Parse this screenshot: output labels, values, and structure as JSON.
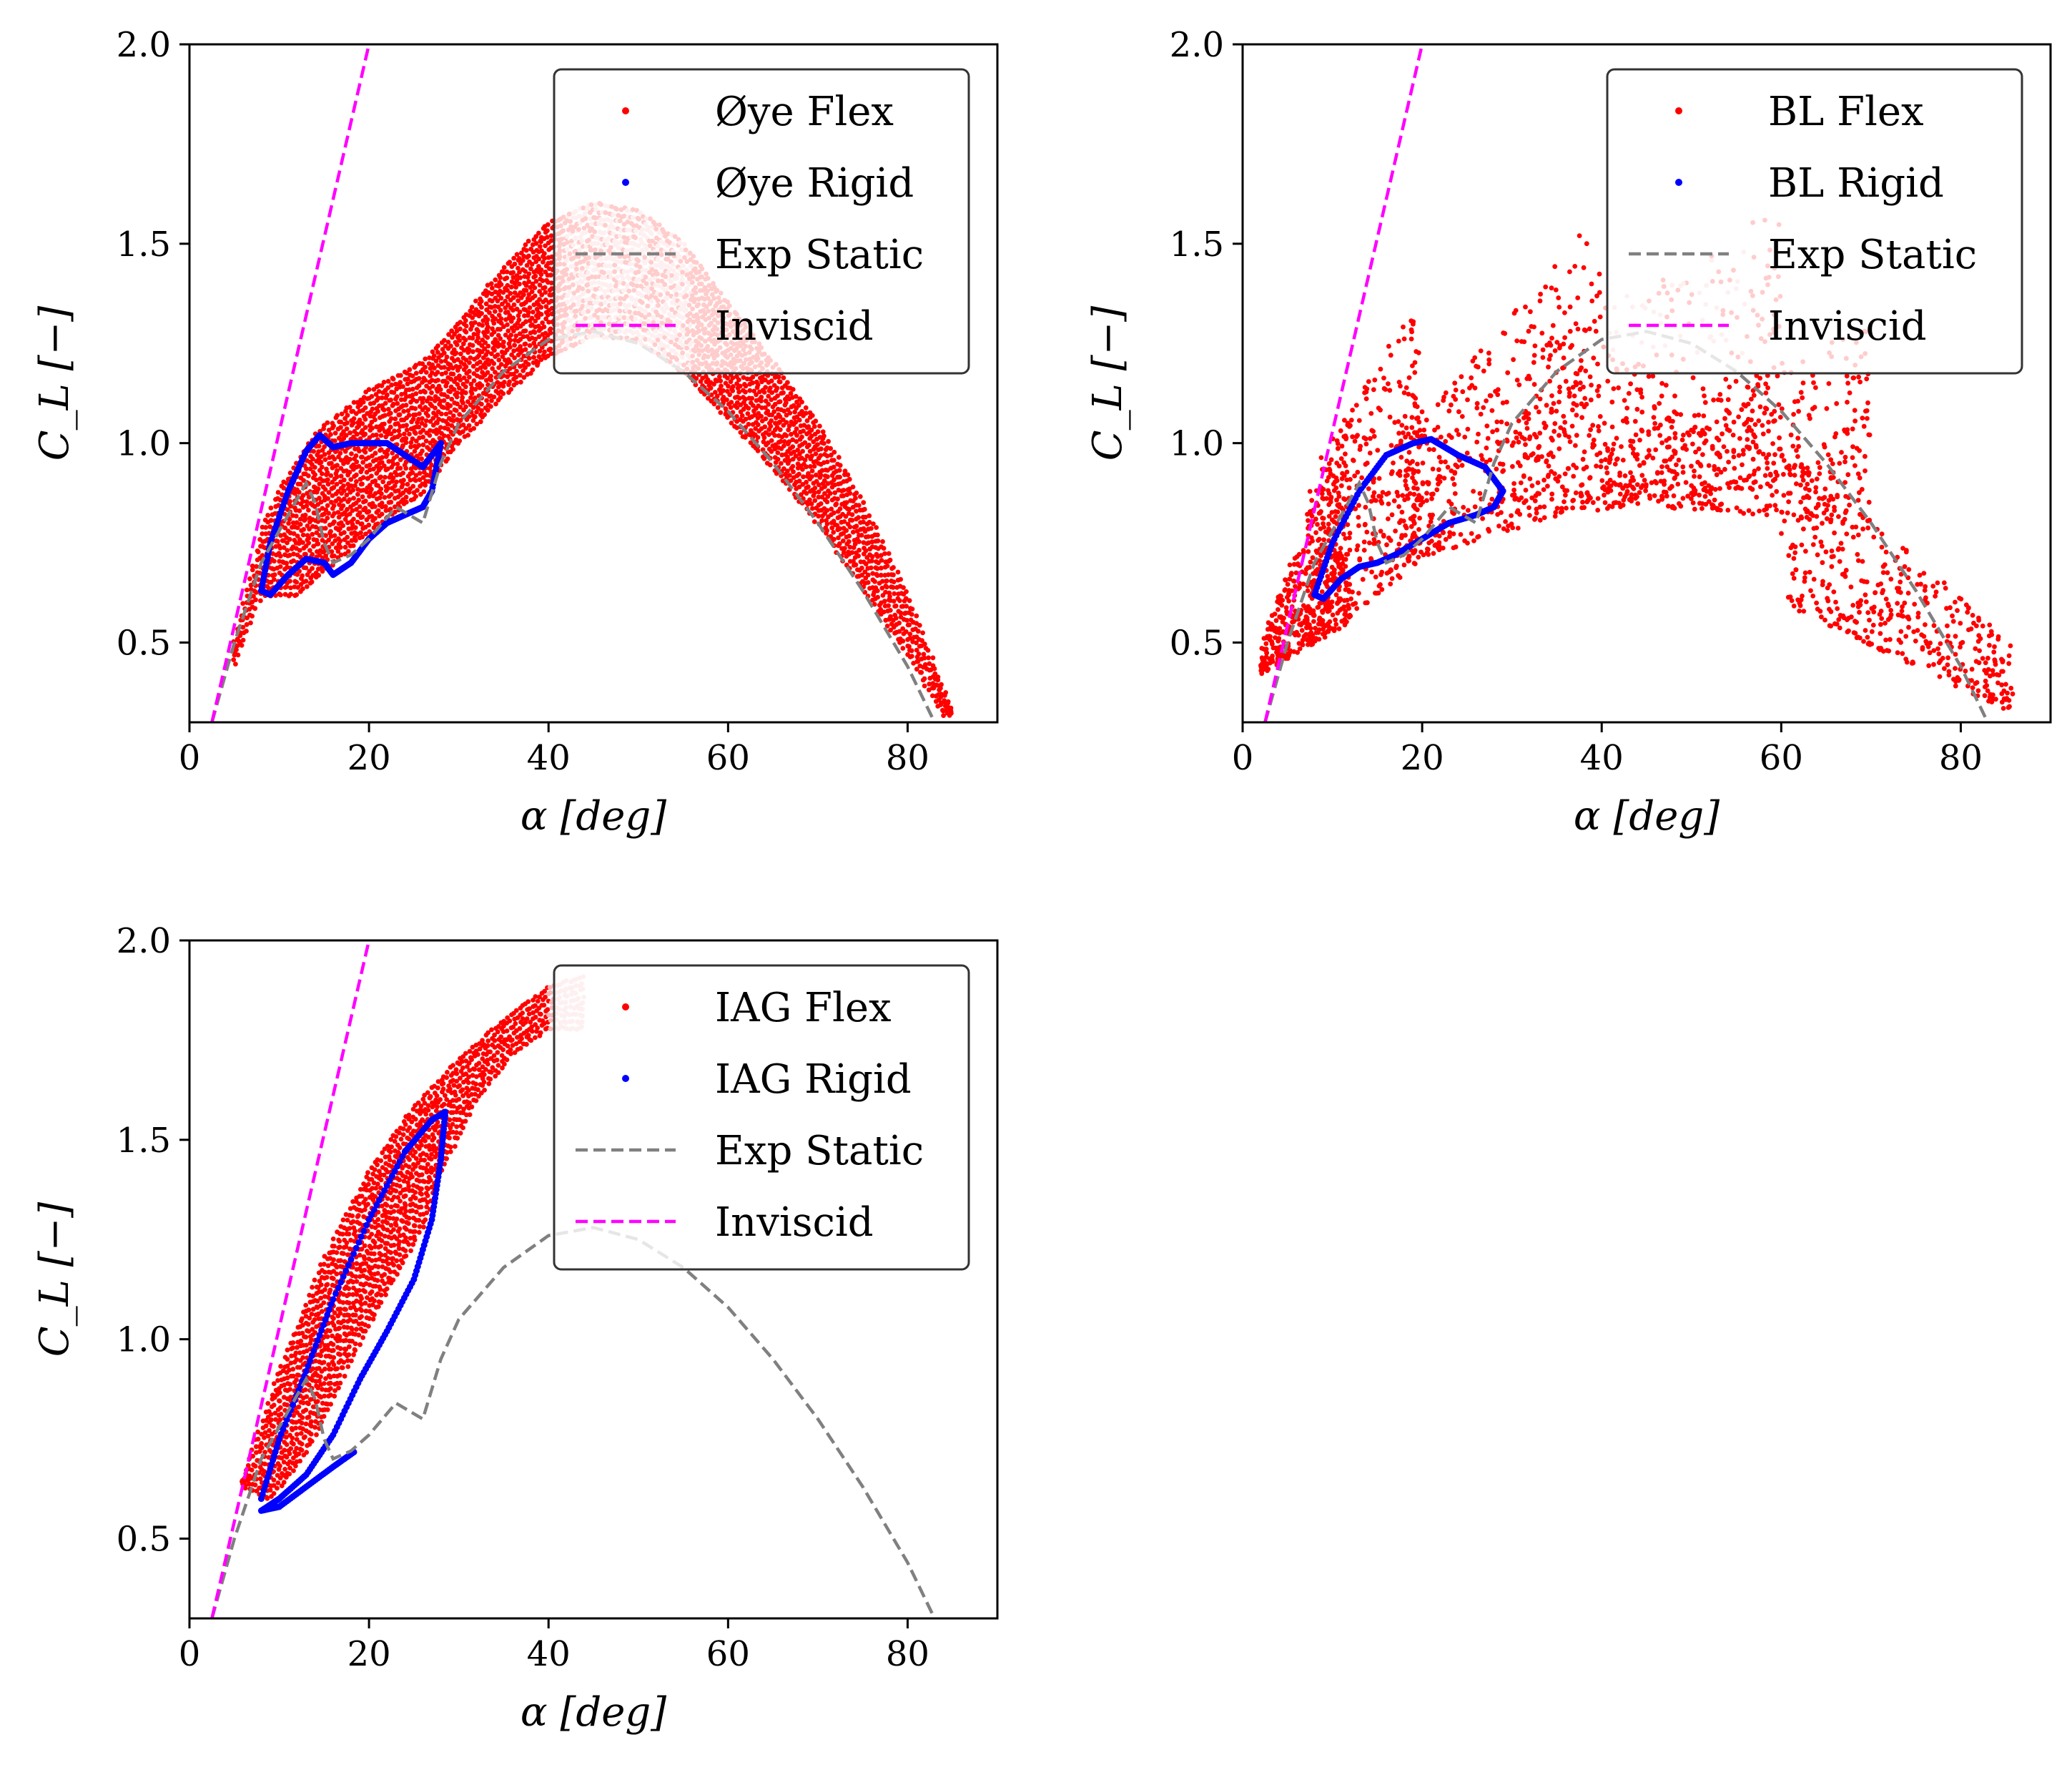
{
  "figure": {
    "colors": {
      "flex": "#ff0000",
      "flex_light": "#f8b5b5",
      "rigid": "#0000ff",
      "exp_static": "#808080",
      "inviscid": "#ff00ff",
      "axes": "#000000"
    }
  },
  "chart_data": [
    {
      "type": "scatter",
      "xlabel": "α [deg]",
      "ylabel": "C_L [−]",
      "xlim": [
        0,
        90
      ],
      "ylim": [
        0.3,
        2.0
      ],
      "xticks": [
        "0",
        "20",
        "40",
        "60",
        "80"
      ],
      "yticks": [
        "0.5",
        "1.0",
        "1.5",
        "2.0"
      ],
      "legend_position": "top-right",
      "legend": [
        "Øye Flex",
        "Øye Rigid",
        "Exp Static",
        "Inviscid"
      ],
      "series": [
        {
          "name": "Øye Flex",
          "kind": "scatter-band",
          "color": "#ff0000",
          "upper": [
            [
              5,
              0.5
            ],
            [
              8,
              0.78
            ],
            [
              10,
              0.88
            ],
            [
              14,
              1.02
            ],
            [
              20,
              1.13
            ],
            [
              26,
              1.2
            ],
            [
              30,
              1.3
            ],
            [
              35,
              1.44
            ],
            [
              40,
              1.55
            ],
            [
              45,
              1.6
            ],
            [
              50,
              1.58
            ],
            [
              55,
              1.5
            ],
            [
              60,
              1.35
            ],
            [
              65,
              1.2
            ],
            [
              70,
              1.05
            ],
            [
              75,
              0.85
            ],
            [
              80,
              0.62
            ],
            [
              85,
              0.32
            ]
          ],
          "lower": [
            [
              5,
              0.45
            ],
            [
              8,
              0.62
            ],
            [
              12,
              0.62
            ],
            [
              16,
              0.7
            ],
            [
              20,
              0.78
            ],
            [
              26,
              0.88
            ],
            [
              30,
              1.0
            ],
            [
              35,
              1.12
            ],
            [
              40,
              1.22
            ],
            [
              45,
              1.27
            ],
            [
              50,
              1.26
            ],
            [
              55,
              1.18
            ],
            [
              60,
              1.06
            ],
            [
              65,
              0.94
            ],
            [
              70,
              0.8
            ],
            [
              75,
              0.64
            ],
            [
              80,
              0.47
            ],
            [
              84,
              0.32
            ]
          ]
        },
        {
          "name": "Øye Rigid",
          "kind": "loop",
          "color": "#0000ff",
          "points": [
            [
              8,
              0.63
            ],
            [
              9,
              0.75
            ],
            [
              11,
              0.88
            ],
            [
              13,
              0.98
            ],
            [
              14.5,
              1.02
            ],
            [
              16,
              0.99
            ],
            [
              18,
              1.0
            ],
            [
              20,
              1.0
            ],
            [
              22,
              1.0
            ],
            [
              24,
              0.97
            ],
            [
              26,
              0.94
            ],
            [
              28,
              1.0
            ],
            [
              27,
              0.88
            ],
            [
              26,
              0.84
            ],
            [
              24,
              0.82
            ],
            [
              22,
              0.8
            ],
            [
              20,
              0.76
            ],
            [
              18,
              0.7
            ],
            [
              16,
              0.67
            ],
            [
              15,
              0.7
            ],
            [
              13,
              0.71
            ],
            [
              11,
              0.67
            ],
            [
              9,
              0.62
            ],
            [
              8,
              0.63
            ]
          ]
        },
        {
          "name": "Exp Static",
          "kind": "dashed",
          "color": "#808080",
          "points": [
            [
              2.5,
              0.3
            ],
            [
              5,
              0.5
            ],
            [
              8,
              0.7
            ],
            [
              11,
              0.82
            ],
            [
              13,
              0.9
            ],
            [
              14,
              0.85
            ],
            [
              15,
              0.75
            ],
            [
              16,
              0.7
            ],
            [
              18,
              0.72
            ],
            [
              20,
              0.76
            ],
            [
              23,
              0.84
            ],
            [
              26,
              0.8
            ],
            [
              28,
              0.95
            ],
            [
              30,
              1.05
            ],
            [
              35,
              1.18
            ],
            [
              40,
              1.26
            ],
            [
              45,
              1.28
            ],
            [
              50,
              1.25
            ],
            [
              55,
              1.18
            ],
            [
              60,
              1.08
            ],
            [
              65,
              0.95
            ],
            [
              70,
              0.8
            ],
            [
              75,
              0.63
            ],
            [
              80,
              0.44
            ],
            [
              83,
              0.3
            ]
          ]
        },
        {
          "name": "Inviscid",
          "kind": "dashed",
          "color": "#ff00ff",
          "points": [
            [
              2.5,
              0.3
            ],
            [
              20,
              2.0
            ]
          ]
        }
      ]
    },
    {
      "type": "scatter",
      "xlabel": "α [deg]",
      "ylabel": "C_L [−]",
      "xlim": [
        0,
        90
      ],
      "ylim": [
        0.3,
        2.0
      ],
      "xticks": [
        "0",
        "20",
        "40",
        "60",
        "80"
      ],
      "yticks": [
        "0.5",
        "1.0",
        "1.5",
        "2.0"
      ],
      "legend_position": "top-right",
      "legend": [
        "BL Flex",
        "BL Rigid",
        "Exp Static",
        "Inviscid"
      ],
      "series": [
        {
          "name": "BL Flex",
          "kind": "scatter-cloud",
          "color": "#ff0000",
          "regions": [
            {
              "x": [
                2,
                12
              ],
              "y_low": [
                0.42,
                0.55
              ],
              "y_high": [
                0.5,
                1.1
              ]
            },
            {
              "x": [
                7,
                20
              ],
              "y_low": [
                0.48,
                0.7
              ],
              "y_high": [
                0.9,
                1.4
              ]
            },
            {
              "x": [
                18,
                40
              ],
              "y_low": [
                0.7,
                0.85
              ],
              "y_high": [
                1.0,
                1.6
              ]
            },
            {
              "x": [
                30,
                60
              ],
              "y_low": [
                0.8,
                0.9
              ],
              "y_high": [
                1.2,
                1.6
              ]
            },
            {
              "x": [
                40,
                70
              ],
              "y_low": [
                0.85,
                0.8
              ],
              "y_high": [
                1.0,
                1.3
              ]
            },
            {
              "x": [
                60,
                86
              ],
              "y_low": [
                0.6,
                0.32
              ],
              "y_high": [
                1.0,
                0.5
              ]
            }
          ]
        },
        {
          "name": "BL Rigid",
          "kind": "loop",
          "color": "#0000ff",
          "points": [
            [
              8,
              0.62
            ],
            [
              10,
              0.75
            ],
            [
              13,
              0.88
            ],
            [
              16,
              0.97
            ],
            [
              19,
              1.0
            ],
            [
              21,
              1.01
            ],
            [
              24,
              0.97
            ],
            [
              27,
              0.94
            ],
            [
              29,
              0.88
            ],
            [
              28,
              0.84
            ],
            [
              26,
              0.82
            ],
            [
              23,
              0.8
            ],
            [
              20,
              0.76
            ],
            [
              17,
              0.72
            ],
            [
              15,
              0.7
            ],
            [
              13,
              0.69
            ],
            [
              11,
              0.66
            ],
            [
              9,
              0.61
            ],
            [
              8,
              0.62
            ]
          ]
        },
        {
          "name": "Exp Static",
          "kind": "dashed",
          "color": "#808080",
          "points": [
            [
              2.5,
              0.3
            ],
            [
              5,
              0.5
            ],
            [
              8,
              0.7
            ],
            [
              11,
              0.82
            ],
            [
              13,
              0.9
            ],
            [
              14,
              0.85
            ],
            [
              15,
              0.75
            ],
            [
              16,
              0.7
            ],
            [
              18,
              0.72
            ],
            [
              20,
              0.76
            ],
            [
              23,
              0.84
            ],
            [
              26,
              0.8
            ],
            [
              28,
              0.95
            ],
            [
              30,
              1.05
            ],
            [
              35,
              1.18
            ],
            [
              40,
              1.26
            ],
            [
              45,
              1.28
            ],
            [
              50,
              1.25
            ],
            [
              55,
              1.18
            ],
            [
              60,
              1.08
            ],
            [
              65,
              0.95
            ],
            [
              70,
              0.8
            ],
            [
              75,
              0.63
            ],
            [
              80,
              0.44
            ],
            [
              83,
              0.3
            ]
          ]
        },
        {
          "name": "Inviscid",
          "kind": "dashed",
          "color": "#ff00ff",
          "points": [
            [
              2.5,
              0.3
            ],
            [
              20,
              2.0
            ]
          ]
        }
      ]
    },
    {
      "type": "scatter",
      "xlabel": "α [deg]",
      "ylabel": "C_L [−]",
      "xlim": [
        0,
        90
      ],
      "ylim": [
        0.3,
        2.0
      ],
      "xticks": [
        "0",
        "20",
        "40",
        "60",
        "80"
      ],
      "yticks": [
        "0.5",
        "1.0",
        "1.5",
        "2.0"
      ],
      "legend_position": "top-right",
      "legend": [
        "IAG Flex",
        "IAG Rigid",
        "Exp Static",
        "Inviscid"
      ],
      "series": [
        {
          "name": "IAG Flex",
          "kind": "scatter-band",
          "color": "#ff0000",
          "upper": [
            [
              6,
              0.65
            ],
            [
              10,
              0.92
            ],
            [
              15,
              1.2
            ],
            [
              20,
              1.42
            ],
            [
              25,
              1.58
            ],
            [
              30,
              1.7
            ],
            [
              35,
              1.8
            ],
            [
              40,
              1.88
            ],
            [
              44,
              1.91
            ]
          ],
          "lower": [
            [
              6,
              0.63
            ],
            [
              9,
              0.6
            ],
            [
              12,
              0.68
            ],
            [
              15,
              0.8
            ],
            [
              18,
              0.95
            ],
            [
              22,
              1.12
            ],
            [
              26,
              1.28
            ],
            [
              28,
              1.42
            ],
            [
              32,
              1.6
            ],
            [
              36,
              1.72
            ],
            [
              40,
              1.78
            ],
            [
              44,
              1.78
            ]
          ]
        },
        {
          "name": "IAG Rigid",
          "kind": "loop",
          "color": "#0000ff",
          "points": [
            [
              8,
              0.6
            ],
            [
              10,
              0.75
            ],
            [
              13,
              0.92
            ],
            [
              16,
              1.1
            ],
            [
              20,
              1.3
            ],
            [
              24,
              1.47
            ],
            [
              27,
              1.55
            ],
            [
              28.5,
              1.57
            ],
            [
              28,
              1.45
            ],
            [
              27,
              1.3
            ],
            [
              25,
              1.15
            ],
            [
              22,
              1.02
            ],
            [
              19,
              0.9
            ],
            [
              16,
              0.76
            ],
            [
              13,
              0.66
            ],
            [
              10,
              0.6
            ],
            [
              8,
              0.57
            ],
            [
              10,
              0.58
            ],
            [
              13,
              0.63
            ],
            [
              16,
              0.68
            ],
            [
              18.5,
              0.72
            ]
          ]
        },
        {
          "name": "Exp Static",
          "kind": "dashed",
          "color": "#808080",
          "points": [
            [
              2.5,
              0.3
            ],
            [
              5,
              0.5
            ],
            [
              8,
              0.7
            ],
            [
              11,
              0.82
            ],
            [
              13,
              0.9
            ],
            [
              14,
              0.85
            ],
            [
              15,
              0.75
            ],
            [
              16,
              0.7
            ],
            [
              18,
              0.72
            ],
            [
              20,
              0.76
            ],
            [
              23,
              0.84
            ],
            [
              26,
              0.8
            ],
            [
              28,
              0.95
            ],
            [
              30,
              1.05
            ],
            [
              35,
              1.18
            ],
            [
              40,
              1.26
            ],
            [
              45,
              1.28
            ],
            [
              50,
              1.25
            ],
            [
              55,
              1.18
            ],
            [
              60,
              1.08
            ],
            [
              65,
              0.95
            ],
            [
              70,
              0.8
            ],
            [
              75,
              0.63
            ],
            [
              80,
              0.44
            ],
            [
              83,
              0.3
            ]
          ]
        },
        {
          "name": "Inviscid",
          "kind": "dashed",
          "color": "#ff00ff",
          "points": [
            [
              2.5,
              0.3
            ],
            [
              20,
              2.0
            ]
          ]
        }
      ]
    }
  ]
}
